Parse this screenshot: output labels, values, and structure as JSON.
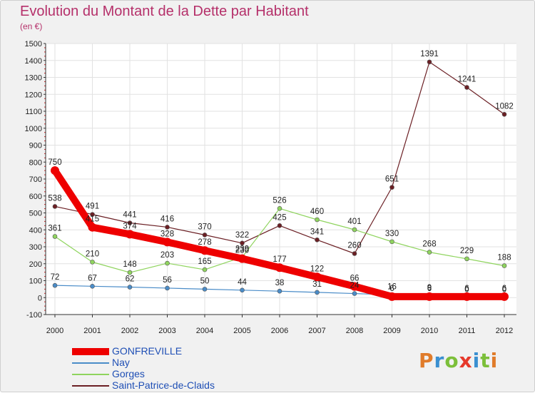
{
  "chart_data": {
    "type": "line",
    "title": "Evolution du Montant de la Dette par Habitant",
    "subtitle": "(en €)",
    "xlabel": "",
    "ylabel": "",
    "ylim": [
      -100,
      1500
    ],
    "yticks": [
      "-100",
      "0",
      "100",
      "200",
      "300",
      "400",
      "500",
      "600",
      "700",
      "800",
      "900",
      "1000",
      "1100",
      "1200",
      "1300",
      "1400",
      "1500"
    ],
    "categories": [
      "2000",
      "2001",
      "2002",
      "2003",
      "2004",
      "2005",
      "2006",
      "2007",
      "2008",
      "2009",
      "2010",
      "2011",
      "2012"
    ],
    "series": [
      {
        "name": "Saint-Patrice-de-Claids",
        "color": "#6b1f24",
        "values": [
          538,
          491,
          441,
          416,
          370,
          322,
          425,
          341,
          260,
          651,
          1391,
          1241,
          1082
        ],
        "labels": [
          "538",
          "491",
          "441",
          "416",
          "370",
          "322",
          "425",
          "341",
          "260",
          "651",
          "1391",
          "1241",
          "1082"
        ]
      },
      {
        "name": "Gorges",
        "color": "#8fd45e",
        "values": [
          361,
          210,
          148,
          203,
          165,
          239,
          526,
          460,
          401,
          330,
          268,
          229,
          188
        ],
        "labels": [
          "361",
          "210",
          "148",
          "203",
          "165",
          "239",
          "526",
          "460",
          "401",
          "330",
          "268",
          "229",
          "188"
        ]
      },
      {
        "name": "Nay",
        "color": "#4a8cc8",
        "values": [
          72,
          67,
          62,
          56,
          50,
          44,
          38,
          31,
          24,
          16,
          9,
          0,
          0
        ],
        "labels": [
          "72",
          "67",
          "62",
          "56",
          "50",
          "44",
          "38",
          "31",
          "24",
          "16",
          "9",
          "0",
          "0"
        ]
      },
      {
        "name": "GONFREVILLE",
        "color": "#ee0000",
        "values": [
          750,
          415,
          374,
          328,
          278,
          230,
          177,
          122,
          66,
          6,
          6,
          6,
          6
        ],
        "labels": [
          "750",
          "415",
          "374",
          "328",
          "278",
          "230",
          "177",
          "122",
          "66",
          "6",
          "6",
          "6",
          "6"
        ]
      }
    ],
    "legend": [
      "GONFREVILLE",
      "Nay",
      "Gorges",
      "Saint-Patrice-de-Claids"
    ]
  },
  "logo": {
    "letters": [
      "P",
      "r",
      "o",
      "x",
      "i",
      "t",
      "i"
    ],
    "colors": [
      "#e07b2a",
      "#3a8fd0",
      "#7cbf3a",
      "#e6392b",
      "#3a8fd0",
      "#7cbf3a",
      "#e07b2a"
    ]
  }
}
